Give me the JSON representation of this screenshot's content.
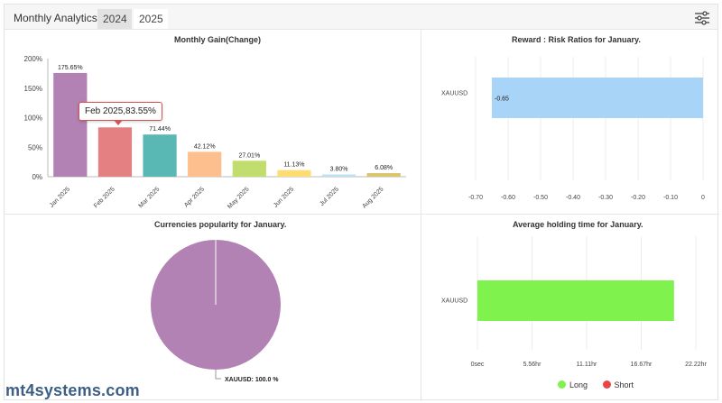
{
  "app": {
    "title": "Monthly Analytics",
    "tabs": [
      {
        "label": "2024",
        "active": false
      },
      {
        "label": "2025",
        "active": true
      }
    ],
    "settings_icon": "sliders-icon"
  },
  "watermark": {
    "text": "mt4systems.com"
  },
  "tooltip": {
    "text": "Feb 2025,83.55%"
  },
  "chart_data": [
    {
      "type": "bar",
      "title": "Monthly Gain(Change)",
      "categories": [
        "Jan 2025",
        "Feb 2025",
        "Mar 2025",
        "Apr 2025",
        "May 2025",
        "Jun 2025",
        "Jul 2025",
        "Aug 2025"
      ],
      "values": [
        175.65,
        83.55,
        71.44,
        42.12,
        27.01,
        11.13,
        3.8,
        6.08
      ],
      "value_labels": [
        "175.65%",
        "",
        "71.44%",
        "42.12%",
        "27.01%",
        "11.13%",
        "3.80%",
        "6.08%"
      ],
      "colors": [
        "#b382b4",
        "#e58082",
        "#5ab8b4",
        "#fdbf8e",
        "#c1dd6d",
        "#fddc73",
        "#bde0f4",
        "#d9c56e"
      ],
      "yticks": [
        "0%",
        "50%",
        "100%",
        "150%",
        "200%"
      ],
      "ylim": [
        0,
        200
      ],
      "grid": false
    },
    {
      "type": "bar",
      "orientation": "horizontal",
      "title": "Reward : Risk Ratios for January.",
      "categories": [
        "XAUUSD"
      ],
      "values": [
        -0.65
      ],
      "value_labels": [
        "-0.65"
      ],
      "color": "#a8d4f7",
      "xticks": [
        "-0.70",
        "-0.60",
        "-0.50",
        "-0.40",
        "-0.30",
        "-0.20",
        "-0.10",
        "0"
      ],
      "xlim": [
        -0.7,
        0
      ],
      "grid": true
    },
    {
      "type": "pie",
      "title": "Currencies popularity for January.",
      "labels": [
        "XAUUSD: 100.0 %"
      ],
      "values": [
        100.0
      ],
      "colors": [
        "#b382b4"
      ]
    },
    {
      "type": "bar",
      "orientation": "horizontal",
      "title": "Average holding time for January.",
      "categories": [
        "XAUUSD"
      ],
      "series": [
        {
          "name": "Long",
          "values": [
            20.0
          ],
          "color": "#80f24d"
        },
        {
          "name": "Short",
          "values": [
            0
          ],
          "color": "#e84646"
        }
      ],
      "xticks": [
        "0sec",
        "5.56hr",
        "11.11hr",
        "16.67hr",
        "22.22hr"
      ],
      "xlim": [
        0,
        22.22
      ],
      "grid": true
    }
  ]
}
